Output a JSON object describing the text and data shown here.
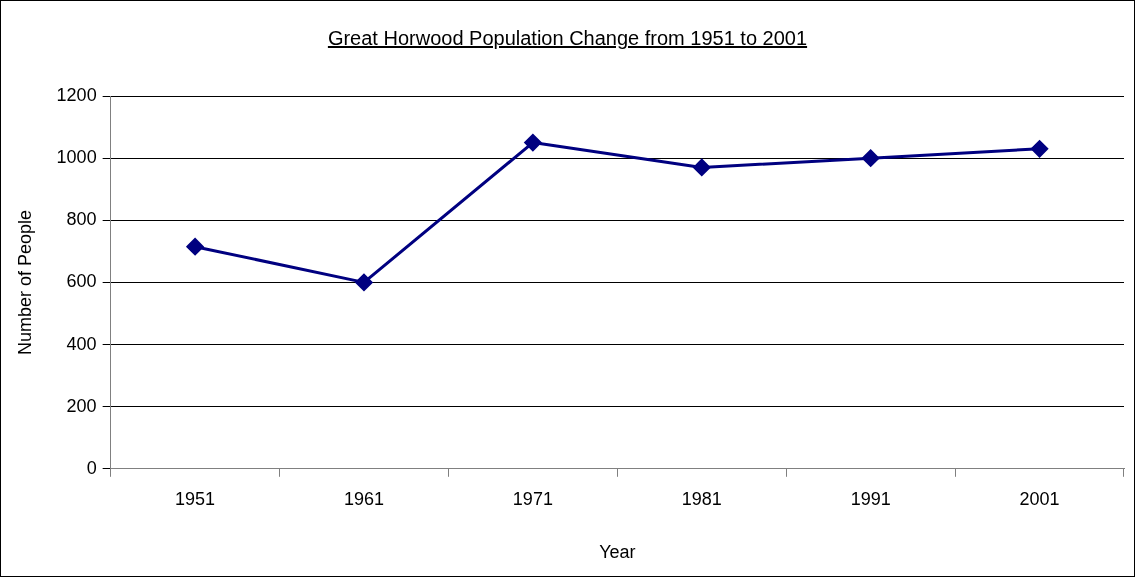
{
  "chart_data": {
    "type": "line",
    "title": "Great Horwood Population Change from 1951 to 2001",
    "xlabel": "Year",
    "ylabel": "Number of People",
    "categories": [
      "1951",
      "1961",
      "1971",
      "1981",
      "1991",
      "2001"
    ],
    "series": [
      {
        "color": "#000080",
        "values": [
          715,
          600,
          1050,
          970,
          1000,
          1030
        ]
      }
    ],
    "ylim": [
      0,
      1200
    ],
    "yticks": [
      0,
      200,
      400,
      600,
      800,
      1000,
      1200
    ],
    "grid": "y",
    "legend": false,
    "marker": "diamond",
    "line_style": "solid"
  }
}
